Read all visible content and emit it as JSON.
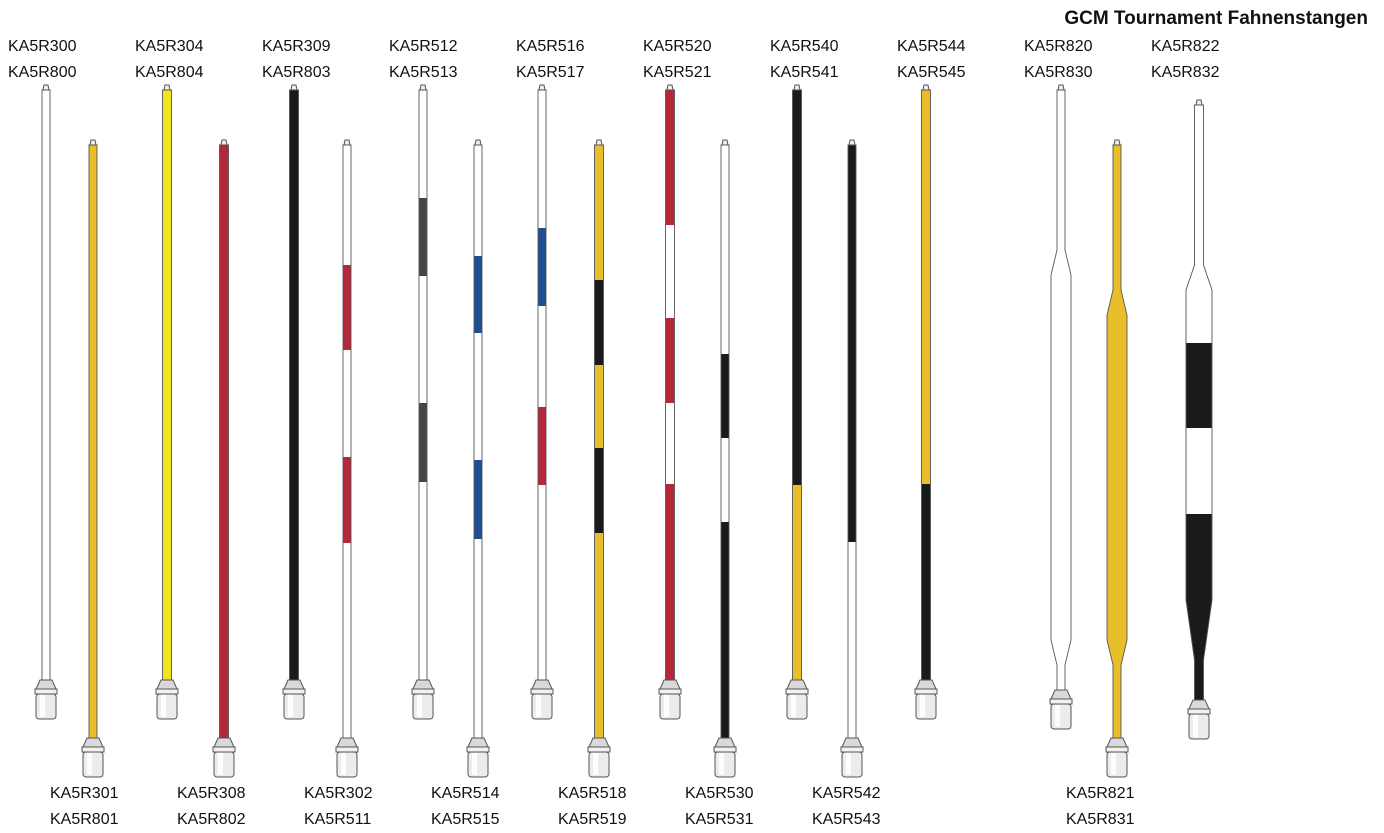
{
  "title": "GCM Tournament Fahnenstangen",
  "colors": {
    "white": "#ffffff",
    "yellow_bright": "#f2e41e",
    "yellow": "#e8be2a",
    "red": "#b5283a",
    "black": "#1a1a1a",
    "dark_grey": "#454545",
    "blue": "#1f4f91",
    "outline": "#555555"
  },
  "top_labels": [
    [
      "KA5R300",
      "KA5R800"
    ],
    [
      "KA5R304",
      "KA5R804"
    ],
    [
      "KA5R309",
      "KA5R803"
    ],
    [
      "KA5R512",
      "KA5R513"
    ],
    [
      "KA5R516",
      "KA5R517"
    ],
    [
      "KA5R520",
      "KA5R521"
    ],
    [
      "KA5R540",
      "KA5R541"
    ],
    [
      "KA5R544",
      "KA5R545"
    ],
    [
      "KA5R820",
      "KA5R830"
    ],
    [
      "KA5R822",
      "KA5R832"
    ]
  ],
  "bottom_labels": [
    [
      "KA5R301",
      "KA5R801"
    ],
    [
      "KA5R308",
      "KA5R802"
    ],
    [
      "KA5R302",
      "KA5R511"
    ],
    [
      "KA5R514",
      "KA5R515"
    ],
    [
      "KA5R518",
      "KA5R519"
    ],
    [
      "KA5R530",
      "KA5R531"
    ],
    [
      "KA5R542",
      "KA5R543"
    ],
    [
      "KA5R821",
      "KA5R831"
    ]
  ],
  "poles": [
    {
      "pattern": [
        "white"
      ]
    },
    {
      "pattern": [
        "yellow"
      ]
    },
    {
      "pattern": [
        "yellow_bright"
      ]
    },
    {
      "pattern": [
        "red"
      ]
    },
    {
      "pattern": [
        "black"
      ]
    },
    {
      "pattern": [
        "white",
        "red",
        "white",
        "red",
        "white"
      ]
    },
    {
      "pattern": [
        "white",
        "dark_grey",
        "white",
        "dark_grey",
        "white"
      ]
    },
    {
      "pattern": [
        "white",
        "blue",
        "white",
        "blue",
        "white"
      ]
    },
    {
      "pattern": [
        "white",
        "blue",
        "white",
        "red",
        "white"
      ]
    },
    {
      "pattern": [
        "yellow",
        "black",
        "yellow",
        "black",
        "yellow"
      ]
    },
    {
      "pattern": [
        "red",
        "white",
        "red",
        "white",
        "red"
      ]
    },
    {
      "pattern": [
        "white",
        "black",
        "white",
        "black"
      ]
    },
    {
      "pattern": [
        "black",
        "yellow"
      ]
    },
    {
      "pattern": [
        "black",
        "white"
      ]
    },
    {
      "pattern": [
        "yellow",
        "black"
      ]
    },
    {
      "pattern": [
        "white"
      ],
      "tapered": true
    },
    {
      "pattern": [
        "yellow"
      ],
      "tapered": true
    },
    {
      "pattern": [
        "white",
        "black",
        "white",
        "black"
      ],
      "tapered": true
    }
  ]
}
